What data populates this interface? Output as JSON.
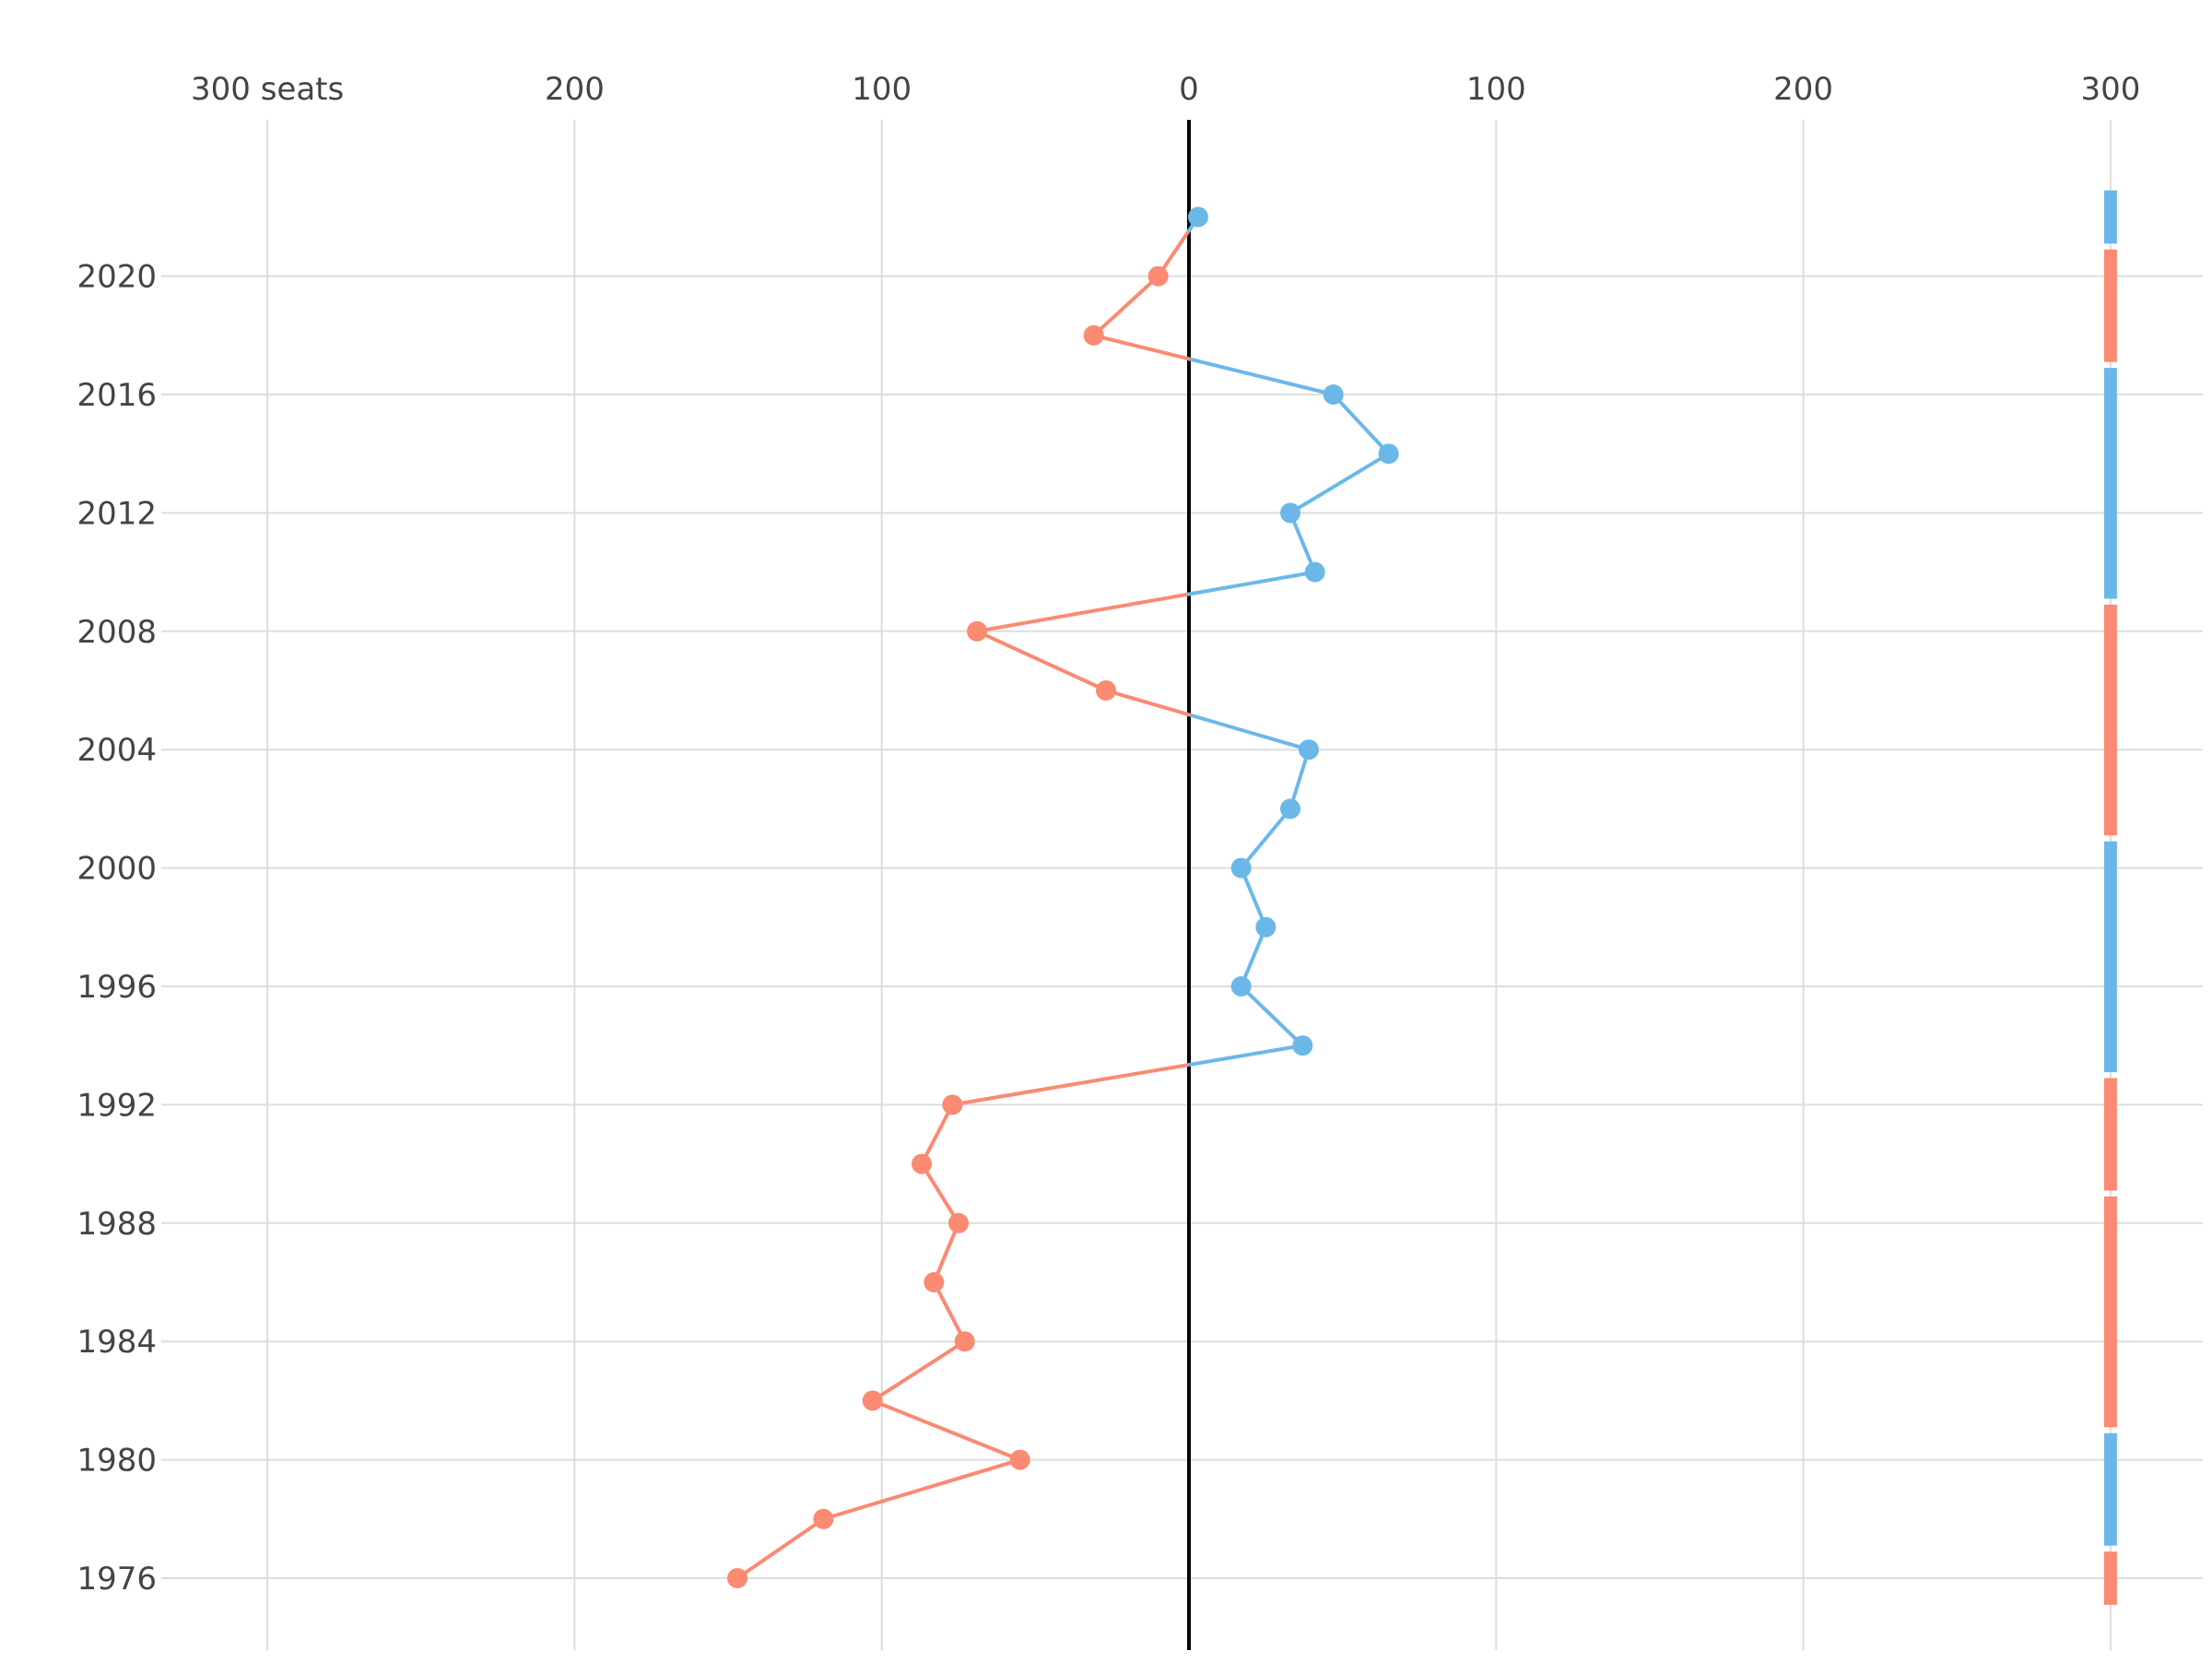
{
  "chart_data": {
    "type": "line",
    "title": "",
    "xlabel": "",
    "ylabel": "",
    "xlim": [
      -300,
      300
    ],
    "ylim": [
      1974,
      2023
    ],
    "x_ticks": [
      {
        "value": -300,
        "label": "300 seats"
      },
      {
        "value": -200,
        "label": "200"
      },
      {
        "value": -100,
        "label": "100"
      },
      {
        "value": 0,
        "label": "0"
      },
      {
        "value": 100,
        "label": "100"
      },
      {
        "value": 200,
        "label": "200"
      },
      {
        "value": 300,
        "label": "300"
      }
    ],
    "y_ticks": [
      {
        "value": 1976,
        "label": "1976"
      },
      {
        "value": 1980,
        "label": "1980"
      },
      {
        "value": 1984,
        "label": "1984"
      },
      {
        "value": 1988,
        "label": "1988"
      },
      {
        "value": 1992,
        "label": "1992"
      },
      {
        "value": 1996,
        "label": "1996"
      },
      {
        "value": 2000,
        "label": "2000"
      },
      {
        "value": 2004,
        "label": "2004"
      },
      {
        "value": 2008,
        "label": "2008"
      },
      {
        "value": 2012,
        "label": "2012"
      },
      {
        "value": 2016,
        "label": "2016"
      },
      {
        "value": 2020,
        "label": "2020"
      }
    ],
    "grid": true,
    "colors": {
      "positive": "#6BB8E8",
      "negative": "#FA8A72",
      "zero_line": "#000000",
      "grid": "#DDDDDD"
    },
    "points": [
      {
        "year": 1976,
        "value": -147
      },
      {
        "year": 1978,
        "value": -119
      },
      {
        "year": 1980,
        "value": -55
      },
      {
        "year": 1982,
        "value": -103
      },
      {
        "year": 1984,
        "value": -73
      },
      {
        "year": 1986,
        "value": -83
      },
      {
        "year": 1988,
        "value": -75
      },
      {
        "year": 1990,
        "value": -87
      },
      {
        "year": 1992,
        "value": -77
      },
      {
        "year": 1994,
        "value": 37
      },
      {
        "year": 1996,
        "value": 17
      },
      {
        "year": 1998,
        "value": 25
      },
      {
        "year": 2000,
        "value": 17
      },
      {
        "year": 2002,
        "value": 33
      },
      {
        "year": 2004,
        "value": 39
      },
      {
        "year": 2006,
        "value": -27
      },
      {
        "year": 2008,
        "value": -69
      },
      {
        "year": 2010,
        "value": 41
      },
      {
        "year": 2012,
        "value": 33
      },
      {
        "year": 2014,
        "value": 65
      },
      {
        "year": 2016,
        "value": 47
      },
      {
        "year": 2018,
        "value": -31
      },
      {
        "year": 2020,
        "value": -10
      },
      {
        "year": 2022,
        "value": 3
      }
    ],
    "control_strip": {
      "x": 300,
      "segments": [
        {
          "from": 1975.1,
          "to": 1976.9,
          "side": "negative"
        },
        {
          "from": 1977.1,
          "to": 1980.9,
          "side": "positive"
        },
        {
          "from": 1981.1,
          "to": 1988.9,
          "side": "negative"
        },
        {
          "from": 1989.1,
          "to": 1992.9,
          "side": "negative"
        },
        {
          "from": 1993.1,
          "to": 2000.9,
          "side": "positive"
        },
        {
          "from": 2001.1,
          "to": 2008.9,
          "side": "negative"
        },
        {
          "from": 2009.1,
          "to": 2016.9,
          "side": "positive"
        },
        {
          "from": 2017.1,
          "to": 2020.9,
          "side": "negative"
        },
        {
          "from": 2021.1,
          "to": 2022.9,
          "side": "positive"
        }
      ]
    }
  }
}
